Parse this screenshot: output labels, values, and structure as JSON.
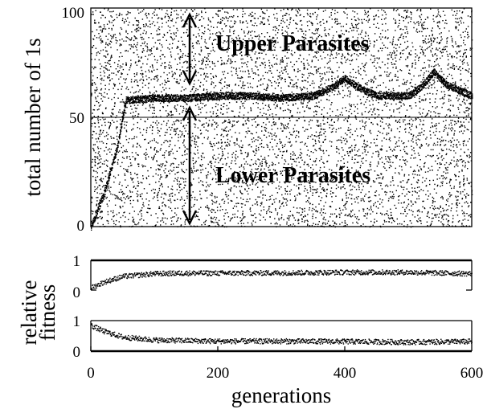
{
  "chart_data": [
    {
      "panel": "population",
      "type": "scatter",
      "title": "",
      "xlabel": "",
      "ylabel": "total number of 1s",
      "xlim": [
        0,
        600
      ],
      "ylim": [
        0,
        100
      ],
      "yticks": [
        "0",
        "50",
        "100"
      ],
      "reference_line_y": 50,
      "annotations": [
        {
          "text": "Upper Parasites",
          "x": 160,
          "y": [
            63,
            100
          ]
        },
        {
          "text": "Lower Parasites",
          "x": 160,
          "y": [
            0,
            58
          ]
        }
      ],
      "series": [
        {
          "description_points": "dense band of hosts",
          "values_x": [
            0,
            20,
            40,
            55,
            100,
            150,
            200,
            250,
            300,
            350,
            380,
            400,
            420,
            450,
            500,
            520,
            540,
            560,
            600
          ],
          "values_y": [
            0,
            15,
            35,
            58,
            59,
            59,
            60,
            60,
            59,
            60,
            64,
            68,
            64,
            60,
            60,
            64,
            71,
            65,
            60
          ]
        }
      ]
    },
    {
      "panel": "fitness-upper",
      "type": "scatter",
      "ylabel": "relative fitness",
      "xlim": [
        0,
        600
      ],
      "ylim": [
        0,
        1
      ],
      "yticks": [
        "0",
        "1"
      ],
      "x": [
        0,
        20,
        50,
        100,
        150,
        200,
        300,
        400,
        500,
        600
      ],
      "values": [
        0.1,
        0.3,
        0.5,
        0.6,
        0.62,
        0.62,
        0.63,
        0.65,
        0.65,
        0.6
      ]
    },
    {
      "panel": "fitness-lower",
      "type": "scatter",
      "xlabel": "generations",
      "xlim": [
        0,
        600
      ],
      "ylim": [
        0,
        1
      ],
      "yticks": [
        "0",
        "1"
      ],
      "xticks": [
        "0",
        "200",
        "400",
        "600"
      ],
      "x": [
        0,
        20,
        50,
        100,
        150,
        200,
        300,
        400,
        500,
        600
      ],
      "values": [
        0.9,
        0.7,
        0.5,
        0.4,
        0.38,
        0.36,
        0.36,
        0.35,
        0.33,
        0.35
      ]
    }
  ]
}
